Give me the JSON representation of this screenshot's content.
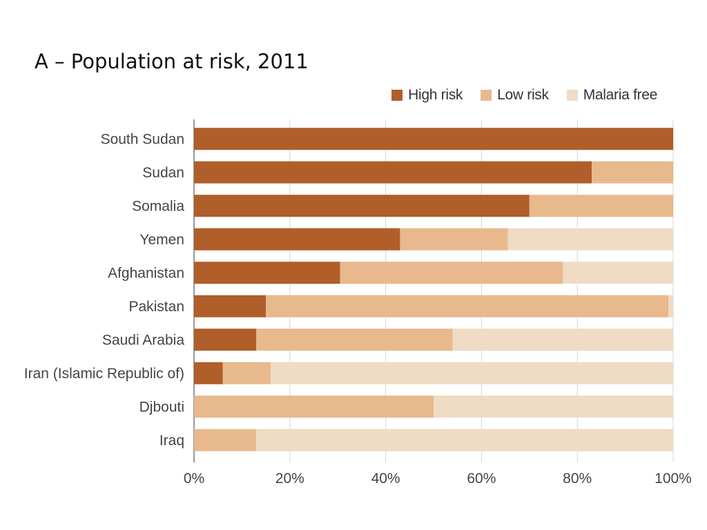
{
  "chart_data": {
    "type": "bar",
    "orientation": "horizontal",
    "stacked": true,
    "title": "A – Population at risk, 2011",
    "categories": [
      "South Sudan",
      "Sudan",
      "Somalia",
      "Yemen",
      "Afghanistan",
      "Pakistan",
      "Saudi Arabia",
      "Iran (Islamic Republic of)",
      "Djbouti",
      "Iraq"
    ],
    "series": [
      {
        "name": "High risk",
        "color": "#b05e2a",
        "values": [
          100,
          83,
          70,
          43,
          30.5,
          15,
          13,
          6,
          0,
          0
        ]
      },
      {
        "name": "Low risk",
        "color": "#e8b98d",
        "values": [
          0,
          17,
          30,
          22.5,
          46.5,
          84,
          41,
          10,
          50,
          13
        ]
      },
      {
        "name": "Malaria free",
        "color": "#f0dbc4",
        "values": [
          0,
          0,
          0,
          34.5,
          23,
          1,
          46,
          84,
          50,
          87
        ]
      }
    ],
    "xlim": [
      0,
      100
    ],
    "x_ticks": [
      0,
      20,
      40,
      60,
      80,
      100
    ],
    "x_tick_labels": [
      "0%",
      "20%",
      "40%",
      "60%",
      "80%",
      "100%"
    ],
    "xlabel": "",
    "ylabel": "",
    "grid": true,
    "legend_position": "top-right"
  }
}
